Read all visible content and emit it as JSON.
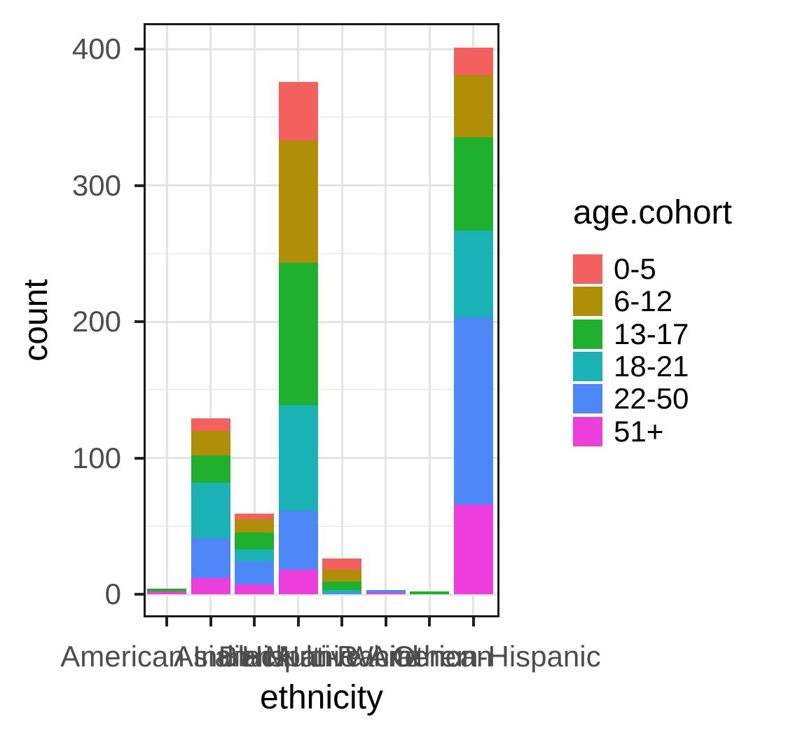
{
  "chart_data": {
    "type": "bar",
    "variant": "stacked",
    "title": "",
    "xlabel": "ethnicity",
    "ylabel": "count",
    "legend_title": "age.cohort",
    "legend_position": "right",
    "grid": "major and minor horizontal, major vertical, light gray on white",
    "categories": [
      "American Indian",
      "Asian",
      "Black",
      "Hispanic",
      "Multi-Racial",
      "Native American",
      "Other",
      "White non-Hispanic"
    ],
    "series": [
      {
        "name": "0-5",
        "color": "#F3605E",
        "values": [
          0,
          9,
          4,
          43,
          8,
          0,
          0,
          20
        ]
      },
      {
        "name": "6-12",
        "color": "#AF8F08",
        "values": [
          0,
          18,
          10,
          90,
          9,
          0,
          0,
          46
        ]
      },
      {
        "name": "13-17",
        "color": "#1FB12D",
        "values": [
          2,
          20,
          12,
          104,
          6,
          0,
          2,
          68
        ]
      },
      {
        "name": "18-21",
        "color": "#1BB2B6",
        "values": [
          0,
          41,
          9,
          78,
          2,
          0,
          0,
          64
        ]
      },
      {
        "name": "22-50",
        "color": "#4E88F8",
        "values": [
          0,
          29,
          17,
          43,
          1,
          2,
          0,
          137
        ]
      },
      {
        "name": "51+",
        "color": "#ED3EDC",
        "values": [
          2,
          12,
          7,
          18,
          0,
          1,
          0,
          66
        ]
      }
    ],
    "stack_order_bottom_to_top": [
      "51+",
      "22-50",
      "18-21",
      "13-17",
      "6-12",
      "0-5"
    ],
    "totals": [
      4,
      129,
      59,
      376,
      26,
      3,
      2,
      401
    ],
    "y_ticks": [
      0,
      100,
      200,
      300,
      400
    ],
    "y_minor_ticks": [
      50,
      150,
      250,
      350
    ],
    "ylim": [
      0,
      420
    ],
    "colors": {
      "axis_text": "#4d4d4d",
      "title_text": "#000000",
      "panel_border": "#1a1a1a",
      "grid_major": "#e4e4e4",
      "grid_minor": "#efefef",
      "tick_mark": "#222222",
      "background": "#ffffff"
    }
  }
}
